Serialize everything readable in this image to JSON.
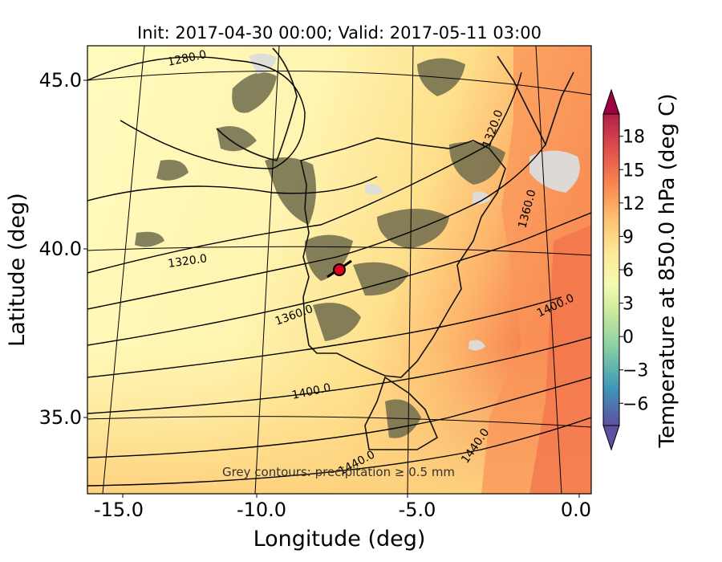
{
  "figure": {
    "title": "Init: 2017-04-30 00:00; Valid: 2017-05-11 03:00",
    "xlabel": "Longitude (deg)",
    "ylabel": "Latitude (deg)",
    "annotation": "Grey contours: precipitation ≥ 0.5 mm"
  },
  "map": {
    "lon_ticks": [
      "-15.0",
      "-10.0",
      "-5.0",
      "0.0"
    ],
    "lat_ticks": [
      "45.0",
      "40.0",
      "35.0"
    ],
    "marker": {
      "lon": -7.7,
      "lat": 39.3,
      "color": "#e3001b"
    }
  },
  "height_contours": [
    "1280.0",
    "1320.0",
    "1360.0",
    "1320.0",
    "1360.0",
    "1400.0",
    "1400.0",
    "1440.0",
    "1440.0"
  ],
  "colorbar": {
    "label": "Temperature at 850.0 hPa (deg C)",
    "ticks": [
      "18",
      "15",
      "12",
      "9",
      "6",
      "3",
      "0",
      "−3",
      "−6"
    ],
    "range": [
      -8,
      20
    ],
    "colors": [
      "#5e4fa2",
      "#3f96b7",
      "#88cfa4",
      "#e6f598",
      "#fee08b",
      "#fdae61",
      "#f46d43",
      "#d53e4f",
      "#9e0142"
    ]
  }
}
